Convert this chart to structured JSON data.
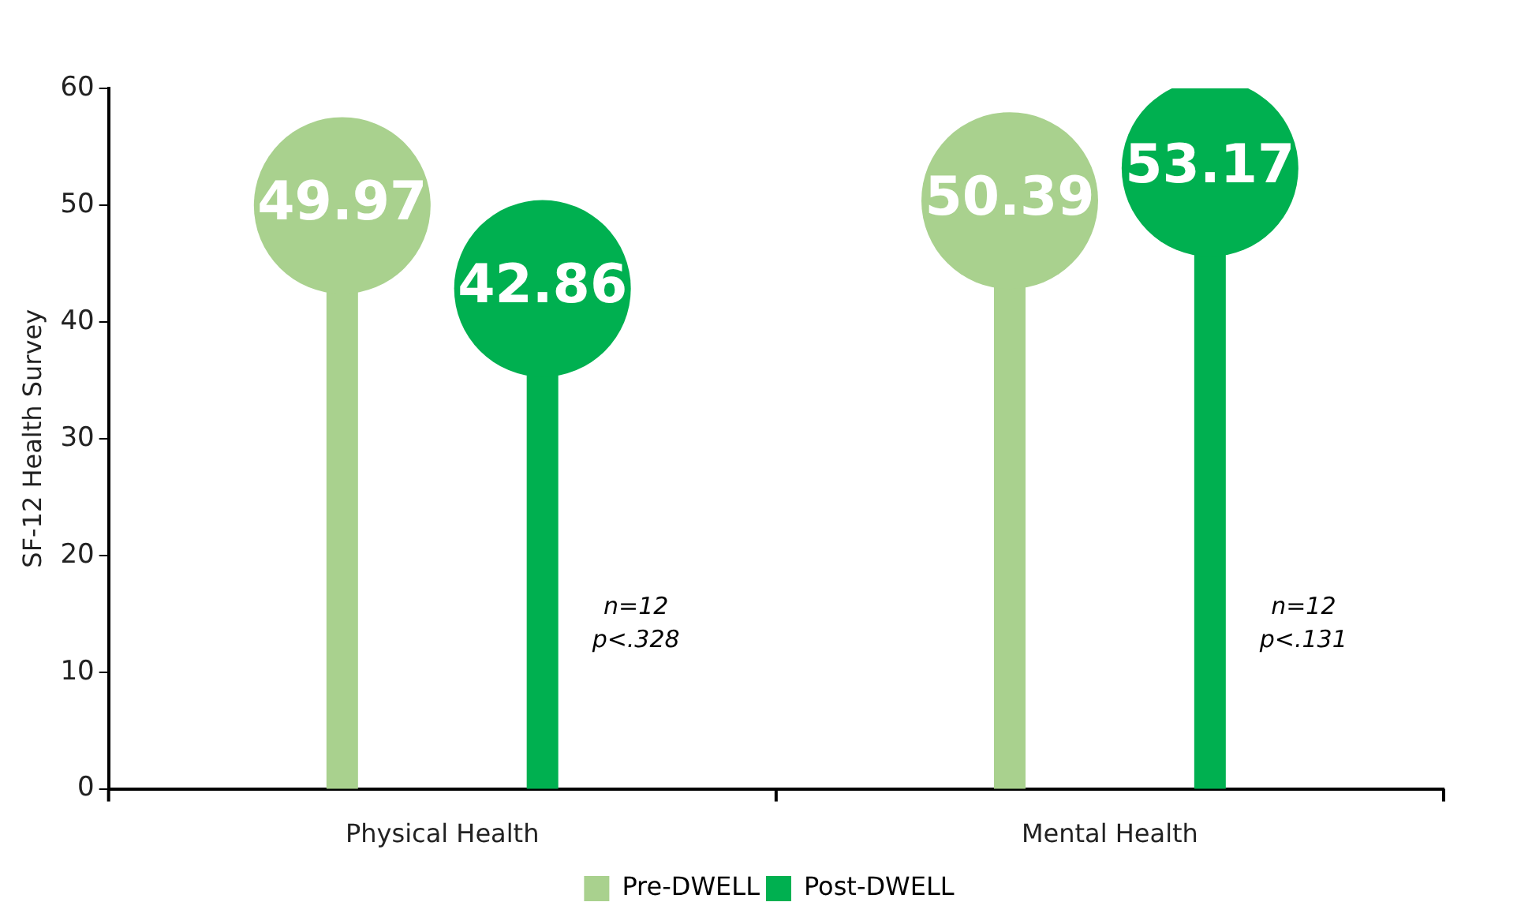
{
  "chart_data": {
    "type": "lollipop",
    "ylabel": "SF-12 Health Survey",
    "categories": [
      "Physical Health",
      "Mental Health"
    ],
    "series": [
      {
        "name": "Pre-DWELL",
        "color": "#a9d18e",
        "values": [
          49.97,
          50.39
        ]
      },
      {
        "name": "Post-DWELL",
        "color": "#00b050",
        "values": [
          42.86,
          53.17
        ]
      }
    ],
    "ylim": [
      0,
      60
    ],
    "yticks": [
      0,
      10,
      20,
      30,
      40,
      50,
      60
    ],
    "grid": false,
    "legend": "bottom",
    "data_labels": true,
    "annotations": [
      "n=12",
      "p<.328",
      "n=12",
      "p<.131"
    ]
  }
}
